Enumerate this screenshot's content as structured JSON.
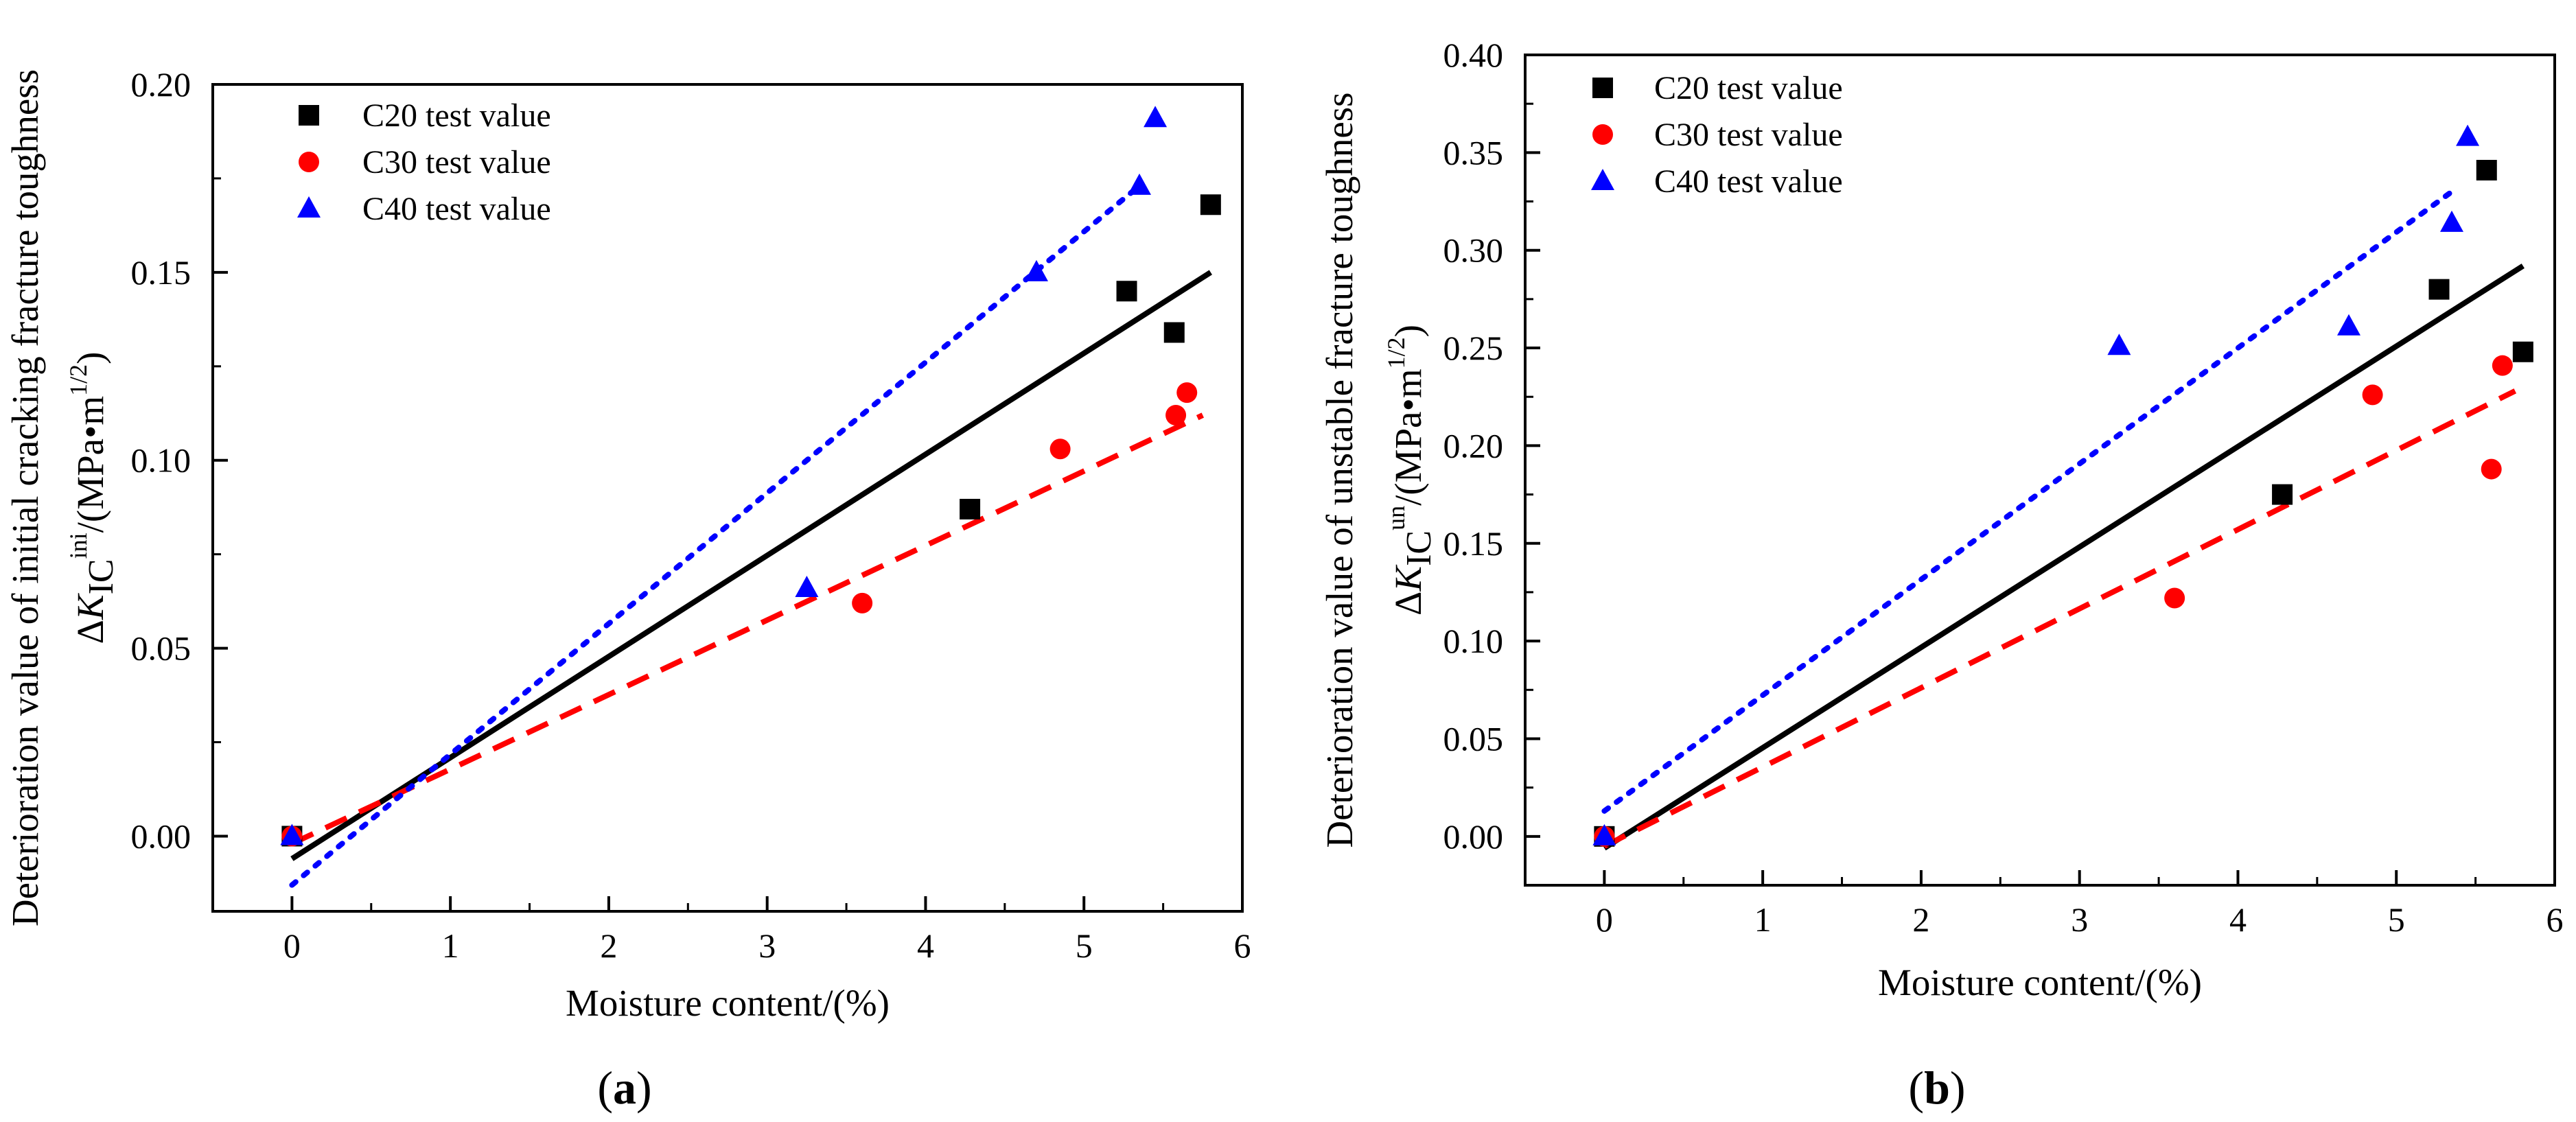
{
  "chart_data": [
    {
      "panel_label_letter": "a",
      "type": "scatter",
      "xlabel": "Moisture content/(%)",
      "ylabel_desc": "Deterioration value of initial cracking fracture toughness",
      "ylabel_sym": {
        "delta": "Δ",
        "K": "K",
        "sub": "IC",
        "sup": "ini",
        "unit_pre": "/(MPa•m",
        "unit_exp": "1/2",
        "unit_post": ")"
      },
      "xlim": [
        -0.5,
        6
      ],
      "ylim": [
        -0.02,
        0.2
      ],
      "xticks": [
        0,
        1,
        2,
        3,
        4,
        5,
        6
      ],
      "yticks": [
        "0.00",
        "0.05",
        "0.10",
        "0.15",
        "0.20"
      ],
      "series": [
        {
          "name": "C20 test value",
          "color": "#000000",
          "marker": "square",
          "line": "solid",
          "x": [
            0,
            4.28,
            5.27,
            5.57,
            5.8
          ],
          "y": [
            0,
            0.087,
            0.145,
            0.134,
            0.168
          ],
          "fit": {
            "x": [
              0,
              5.8
            ],
            "y": [
              -0.006,
              0.15
            ]
          }
        },
        {
          "name": "C30 test value",
          "color": "#ff0000",
          "marker": "circle",
          "line": "dashed",
          "x": [
            0,
            3.6,
            4.85,
            5.58,
            5.65
          ],
          "y": [
            0,
            0.062,
            0.103,
            0.112,
            0.118
          ],
          "fit": {
            "x": [
              0,
              5.75
            ],
            "y": [
              -0.002,
              0.112
            ]
          }
        },
        {
          "name": "C40 test value",
          "color": "#0000ff",
          "marker": "triangle",
          "line": "dotted",
          "x": [
            0,
            3.25,
            4.7,
            5.35,
            5.45
          ],
          "y": [
            0,
            0.066,
            0.15,
            0.173,
            0.191
          ],
          "fit": {
            "x": [
              0,
              5.35
            ],
            "y": [
              -0.013,
              0.173
            ]
          }
        }
      ]
    },
    {
      "panel_label_letter": "b",
      "type": "scatter",
      "xlabel": "Moisture content/(%)",
      "ylabel_desc": "Deterioration value of unstable fracture toughness",
      "ylabel_sym": {
        "delta": "Δ",
        "K": "K",
        "sub": "IC",
        "sup": "un",
        "unit_pre": "/(MPa•m",
        "unit_exp": "1/2",
        "unit_post": ")"
      },
      "xlim": [
        -0.5,
        6
      ],
      "ylim": [
        -0.025,
        0.4
      ],
      "xticks": [
        0,
        1,
        2,
        3,
        4,
        5,
        6
      ],
      "yticks": [
        "0.00",
        "0.05",
        "0.10",
        "0.15",
        "0.20",
        "0.25",
        "0.30",
        "0.35",
        "0.40"
      ],
      "series": [
        {
          "name": "C20 test value",
          "color": "#000000",
          "marker": "square",
          "line": "solid",
          "x": [
            0,
            4.28,
            5.27,
            5.57,
            5.8
          ],
          "y": [
            0,
            0.175,
            0.28,
            0.341,
            0.248
          ],
          "fit": {
            "x": [
              0,
              5.8
            ],
            "y": [
              -0.006,
              0.292
            ]
          }
        },
        {
          "name": "C30 test value",
          "color": "#ff0000",
          "marker": "circle",
          "line": "dashed",
          "x": [
            0,
            3.6,
            4.85,
            5.6,
            5.67
          ],
          "y": [
            0,
            0.122,
            0.226,
            0.188,
            0.241
          ],
          "fit": {
            "x": [
              0,
              5.75
            ],
            "y": [
              -0.005,
              0.228
            ]
          }
        },
        {
          "name": "C40 test value",
          "color": "#0000ff",
          "marker": "triangle",
          "line": "dotted",
          "x": [
            0,
            3.25,
            4.7,
            5.35,
            5.45
          ],
          "y": [
            0,
            0.251,
            0.261,
            0.314,
            0.358
          ],
          "fit": {
            "x": [
              0,
              5.35
            ],
            "y": [
              0.013,
              0.33
            ]
          }
        }
      ]
    }
  ]
}
